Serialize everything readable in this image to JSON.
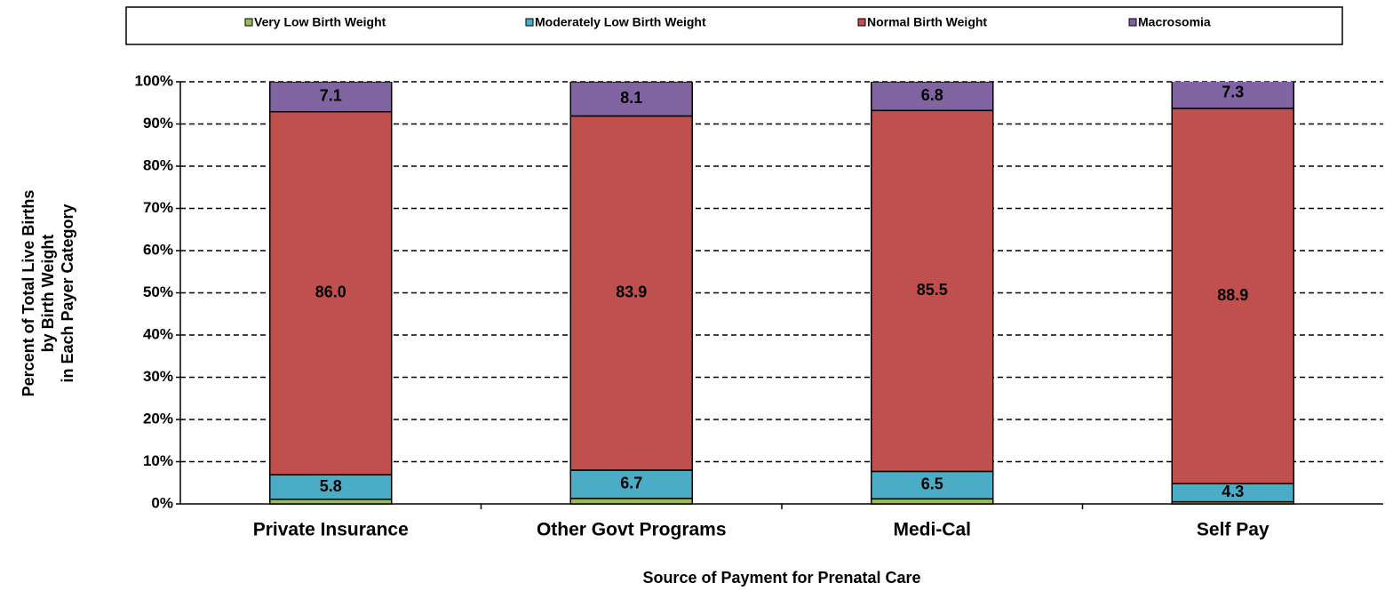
{
  "chart_data": {
    "type": "stacked_bar",
    "categories": [
      "Private Insurance",
      "Other Govt Programs",
      "Medi-Cal",
      "Self Pay"
    ],
    "series": [
      {
        "name": "Very Low Birth Weight",
        "color": "#9bbb59",
        "values": [
          1.1,
          1.3,
          1.2,
          0.5
        ]
      },
      {
        "name": "Moderately Low Birth Weight",
        "color": "#4bacc6",
        "values": [
          5.8,
          6.7,
          6.5,
          4.3
        ],
        "value_labels": [
          "5.8",
          "6.7",
          "6.5",
          "4.3"
        ]
      },
      {
        "name": "Normal Birth Weight",
        "color": "#c0504d",
        "values": [
          86.0,
          83.9,
          85.5,
          88.9
        ],
        "value_labels": [
          "86.0",
          "83.9",
          "85.5",
          "88.9"
        ]
      },
      {
        "name": "Macrosomia",
        "color": "#8064a2",
        "values": [
          7.1,
          8.1,
          6.8,
          7.3
        ],
        "value_labels": [
          "7.1",
          "8.1",
          "6.8",
          "7.3"
        ]
      }
    ],
    "ylim": [
      0,
      100
    ],
    "yticks": [
      {
        "value": 0,
        "label": "0%"
      },
      {
        "value": 10,
        "label": "10%"
      },
      {
        "value": 20,
        "label": "20%"
      },
      {
        "value": 30,
        "label": "30%"
      },
      {
        "value": 40,
        "label": "40%"
      },
      {
        "value": 50,
        "label": "50%"
      },
      {
        "value": 60,
        "label": "60%"
      },
      {
        "value": 70,
        "label": "70%"
      },
      {
        "value": 80,
        "label": "80%"
      },
      {
        "value": 90,
        "label": "90%"
      },
      {
        "value": 100,
        "label": "100%"
      }
    ],
    "grid": true,
    "legend": "top",
    "xlabel": "Source of Payment for Prenatal Care",
    "ylabel": [
      "Percent of Total Live Births",
      "by Birth Weight",
      "in Each Payer Category"
    ]
  }
}
